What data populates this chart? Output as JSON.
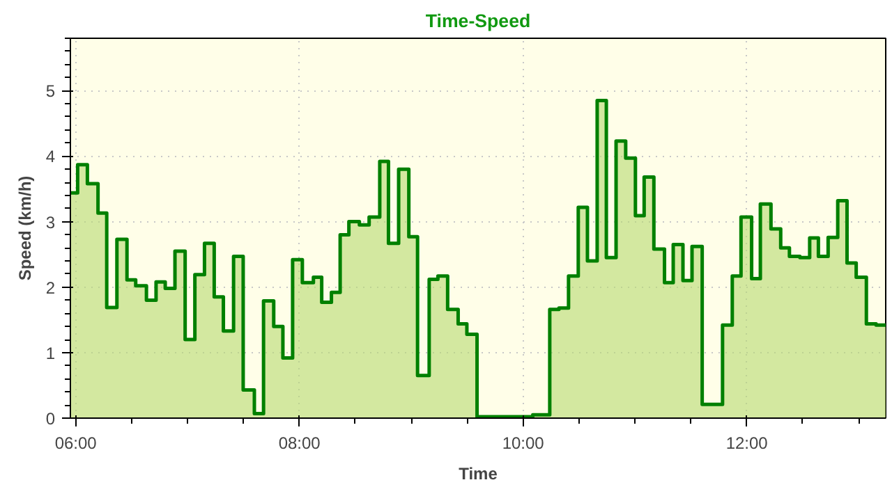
{
  "chart_data": {
    "type": "step",
    "title": "Time-Speed",
    "xlabel": "Time",
    "ylabel": "Speed (km/h)",
    "x": [
      5.952,
      6.017,
      6.104,
      6.199,
      6.277,
      6.368,
      6.458,
      6.536,
      6.632,
      6.718,
      6.8,
      6.887,
      6.978,
      7.065,
      7.151,
      7.238,
      7.32,
      7.411,
      7.497,
      7.597,
      7.679,
      7.77,
      7.852,
      7.939,
      8.026,
      8.125,
      8.199,
      8.286,
      8.364,
      8.442,
      8.536,
      8.623,
      8.718,
      8.796,
      8.887,
      8.978,
      9.056,
      9.16,
      9.238,
      9.325,
      9.419,
      9.497,
      9.588,
      10.086,
      10.238,
      10.32,
      10.406,
      10.493,
      10.575,
      10.662,
      10.744,
      10.831,
      10.917,
      11.004,
      11.082,
      11.169,
      11.264,
      11.342,
      11.429,
      11.51,
      11.601,
      11.783,
      11.87,
      11.948,
      12.043,
      12.121,
      12.216,
      12.303,
      12.381,
      12.475,
      12.562,
      12.64,
      12.727,
      12.813,
      12.896,
      12.978,
      13.069,
      13.156,
      13.242
    ],
    "series": [
      {
        "color": "#008000",
        "values": [
          3.44,
          3.87,
          3.58,
          3.13,
          1.69,
          2.73,
          2.11,
          2.02,
          1.8,
          2.08,
          1.98,
          2.55,
          1.2,
          2.19,
          2.67,
          1.85,
          1.33,
          2.47,
          0.43,
          0.07,
          1.79,
          1.4,
          0.92,
          2.42,
          2.07,
          2.15,
          1.77,
          1.92,
          2.8,
          3.0,
          2.95,
          3.07,
          3.92,
          2.67,
          3.8,
          2.77,
          0.65,
          2.12,
          2.17,
          1.66,
          1.44,
          1.28,
          0.02,
          0.05,
          1.66,
          1.68,
          2.17,
          3.22,
          2.4,
          4.85,
          2.45,
          4.23,
          3.97,
          3.09,
          3.68,
          2.58,
          2.07,
          2.65,
          2.1,
          2.62,
          0.21,
          1.42,
          2.17,
          3.07,
          2.13,
          3.27,
          2.89,
          2.6,
          2.47,
          2.45,
          2.75,
          2.47,
          2.76,
          3.32,
          2.37,
          2.15,
          1.44,
          1.42,
          1.42
        ]
      }
    ],
    "xlim": [
      5.952,
      13.242
    ],
    "ylim": [
      0,
      5.8
    ],
    "xticks": [
      {
        "value": 6,
        "label": "06:00"
      },
      {
        "value": 8,
        "label": "08:00"
      },
      {
        "value": 10,
        "label": "10:00"
      },
      {
        "value": 12,
        "label": "12:00"
      }
    ],
    "yticks": [
      0,
      1,
      2,
      3,
      4,
      5
    ],
    "grid": true
  }
}
